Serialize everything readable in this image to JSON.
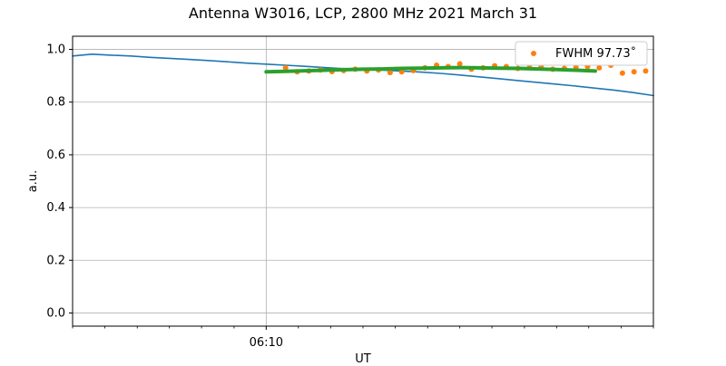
{
  "chart_data": {
    "type": "scatter",
    "title": "Antenna W3016, LCP, 2800 MHz 2021 March 31",
    "xlabel": "UT",
    "ylabel": "a.u.",
    "x_unit": "minutes UT",
    "xlim": [
      365,
      380
    ],
    "ylim": [
      -0.05,
      1.05
    ],
    "yticks": [
      0.0,
      0.2,
      0.4,
      0.6,
      0.8,
      1.0
    ],
    "ytick_labels": [
      "0.0",
      "0.2",
      "0.4",
      "0.6",
      "0.8",
      "1.0"
    ],
    "xticks_major": [
      370
    ],
    "xtick_labels": [
      "06:10"
    ],
    "xticks_minor": [
      365,
      365.83,
      366.67,
      367.5,
      368.33,
      369.17,
      370.83,
      371.67,
      372.5,
      373.33,
      374.17,
      375,
      375.83,
      376.67,
      377.5,
      378.33,
      379.17,
      380
    ],
    "grid": true,
    "legend_position": "top-right",
    "series": [
      {
        "kind": "line",
        "color": "#1f77b4",
        "x": [
          365,
          365.5,
          366,
          366.5,
          367,
          367.5,
          368,
          368.5,
          369,
          369.5,
          370,
          370.5,
          371,
          371.5,
          372,
          372.5,
          373,
          373.5,
          374,
          374.5,
          375,
          375.5,
          376,
          376.5,
          377,
          377.5,
          378,
          378.5,
          379,
          379.5,
          380
        ],
        "y": [
          0.975,
          0.982,
          0.978,
          0.975,
          0.97,
          0.966,
          0.962,
          0.958,
          0.953,
          0.948,
          0.944,
          0.94,
          0.936,
          0.931,
          0.927,
          0.924,
          0.921,
          0.918,
          0.914,
          0.909,
          0.903,
          0.896,
          0.889,
          0.882,
          0.875,
          0.868,
          0.861,
          0.853,
          0.845,
          0.836,
          0.825
        ]
      },
      {
        "kind": "scatter",
        "name": "FWHM 97.73$^\\circ$",
        "legend_label": "FWHM 97.73˚",
        "color": "#ff7f0e",
        "x": [
          370.5,
          370.8,
          371.1,
          371.4,
          371.7,
          372.0,
          372.3,
          372.6,
          372.9,
          373.2,
          373.5,
          373.8,
          374.1,
          374.4,
          374.7,
          375.0,
          375.3,
          375.6,
          375.9,
          376.2,
          376.5,
          376.8,
          377.1,
          377.4,
          377.7,
          378.0,
          378.3,
          378.6,
          378.9,
          379.2,
          379.5,
          379.8
        ],
        "y": [
          0.93,
          0.915,
          0.918,
          0.922,
          0.916,
          0.92,
          0.925,
          0.918,
          0.922,
          0.912,
          0.915,
          0.92,
          0.93,
          0.94,
          0.935,
          0.945,
          0.925,
          0.93,
          0.938,
          0.935,
          0.928,
          0.932,
          0.935,
          0.925,
          0.928,
          0.932,
          0.935,
          0.93,
          0.94,
          0.91,
          0.915,
          0.918
        ]
      },
      {
        "kind": "line",
        "color": "#2ca02c",
        "x": [
          370.0,
          370.5,
          371.0,
          371.5,
          372.0,
          372.5,
          373.0,
          373.5,
          374.0,
          374.5,
          375.0,
          375.5,
          376.0,
          376.5,
          377.0,
          377.5,
          378.0,
          378.5
        ],
        "y": [
          0.915,
          0.917,
          0.919,
          0.921,
          0.923,
          0.925,
          0.926,
          0.928,
          0.929,
          0.93,
          0.931,
          0.93,
          0.929,
          0.928,
          0.926,
          0.924,
          0.921,
          0.918
        ]
      }
    ]
  }
}
